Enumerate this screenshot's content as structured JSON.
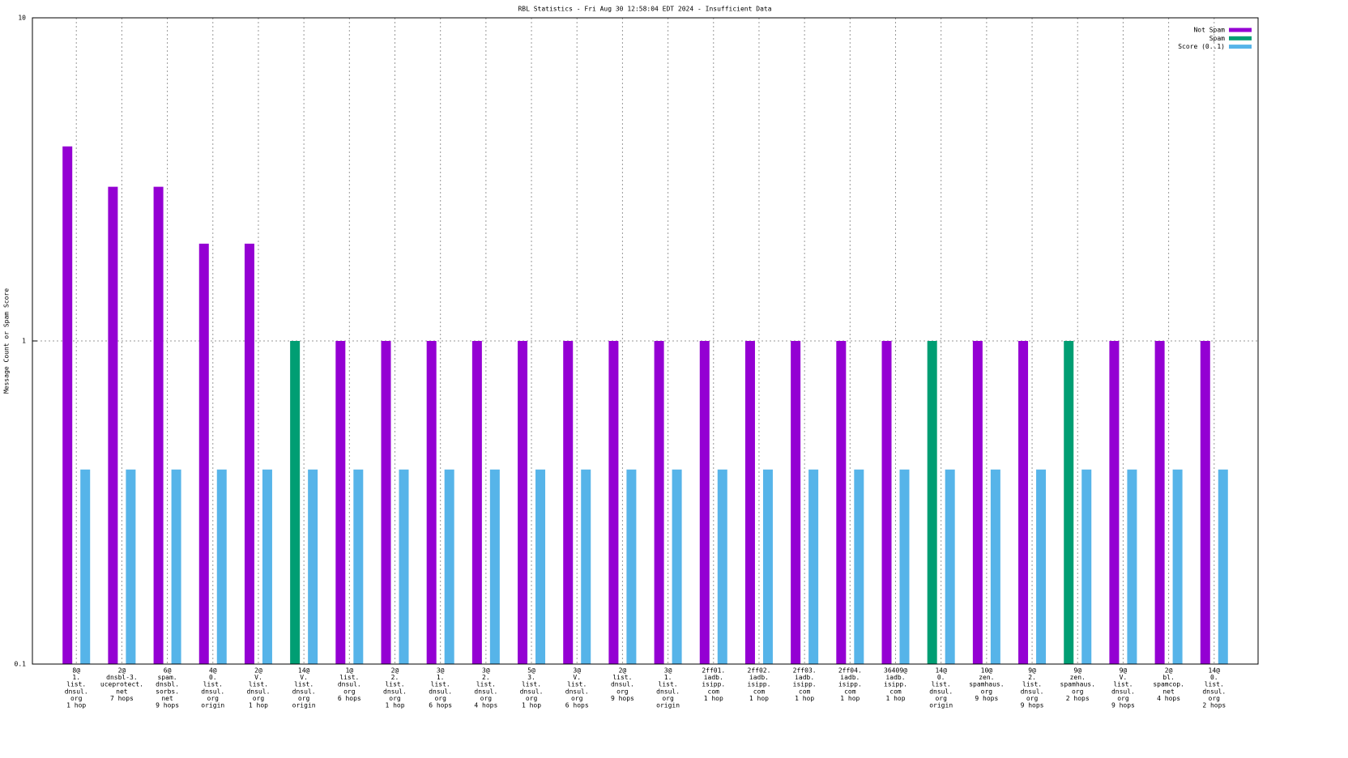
{
  "chart_data": {
    "type": "bar",
    "title": "RBL Statistics - Fri Aug 30 12:58:04 EDT 2024 - Insufficient Data",
    "y_label": "Message Count or Spam Score",
    "categories": [
      [
        "8@",
        "1.",
        "list.",
        "dnsul.",
        "org",
        "1 hop"
      ],
      [
        "2@",
        "dnsbl-3.",
        "uceprotect.",
        "net",
        "7 hops"
      ],
      [
        "6@",
        "spam.",
        "dnsbl.",
        "sorbs.",
        "net",
        "9 hops"
      ],
      [
        "4@",
        "0.",
        "list.",
        "dnsul.",
        "org",
        "origin"
      ],
      [
        "2@",
        "V.",
        "list.",
        "dnsul.",
        "org",
        "1 hop"
      ],
      [
        "14@",
        "V.",
        "list.",
        "dnsul.",
        "org",
        "origin"
      ],
      [
        "1@",
        "list.",
        "dnsul.",
        "org",
        "6 hops"
      ],
      [
        "2@",
        "2.",
        "list.",
        "dnsul.",
        "org",
        "1 hop"
      ],
      [
        "3@",
        "1.",
        "list.",
        "dnsul.",
        "org",
        "6 hops"
      ],
      [
        "3@",
        "2.",
        "list.",
        "dnsul.",
        "org",
        "4 hops"
      ],
      [
        "5@",
        "3.",
        "list.",
        "dnsul.",
        "org",
        "1 hop"
      ],
      [
        "3@",
        "V.",
        "list.",
        "dnsul.",
        "org",
        "6 hops"
      ],
      [
        "2@",
        "list.",
        "dnsul.",
        "org",
        "9 hops"
      ],
      [
        "3@",
        "1.",
        "list.",
        "dnsul.",
        "org",
        "origin"
      ],
      [
        "2ff01.",
        "iadb.",
        "isipp.",
        "com",
        "1 hop"
      ],
      [
        "2ff02.",
        "iadb.",
        "isipp.",
        "com",
        "1 hop"
      ],
      [
        "2ff03.",
        "iadb.",
        "isipp.",
        "com",
        "1 hop"
      ],
      [
        "2ff04.",
        "iadb.",
        "isipp.",
        "com",
        "1 hop"
      ],
      [
        "36409@",
        "iadb.",
        "isipp.",
        "com",
        "1 hop"
      ],
      [
        "14@",
        "0.",
        "list.",
        "dnsul.",
        "org",
        "origin"
      ],
      [
        "10@",
        "zen.",
        "spamhaus.",
        "org",
        "9 hops"
      ],
      [
        "9@",
        "2.",
        "list.",
        "dnsul.",
        "org",
        "9 hops"
      ],
      [
        "9@",
        "zen.",
        "spamhaus.",
        "org",
        "2 hops"
      ],
      [
        "9@",
        "V.",
        "list.",
        "dnsul.",
        "org",
        "9 hops"
      ],
      [
        "2@",
        "bl.",
        "spamcop.",
        "net",
        "4 hops"
      ],
      [
        "14@",
        "0.",
        "list.",
        "dnsul.",
        "org",
        "2 hops"
      ]
    ],
    "series": [
      {
        "name": "Not Spam",
        "color": "#9400d3",
        "values": [
          4,
          3,
          3,
          2,
          2,
          null,
          1,
          1,
          1,
          1,
          1,
          1,
          1,
          1,
          1,
          1,
          1,
          1,
          1,
          null,
          1,
          1,
          null,
          1,
          1,
          1
        ]
      },
      {
        "name": "Spam",
        "color": "#009e73",
        "values": [
          null,
          null,
          null,
          null,
          null,
          1,
          null,
          null,
          null,
          null,
          null,
          null,
          null,
          null,
          null,
          null,
          null,
          null,
          null,
          1,
          null,
          null,
          1,
          null,
          null,
          null
        ]
      },
      {
        "name": "Score (0..1)",
        "color": "#56b4e9",
        "values": [
          0.4,
          0.4,
          0.4,
          0.4,
          0.4,
          0.4,
          0.4,
          0.4,
          0.4,
          0.4,
          0.4,
          0.4,
          0.4,
          0.4,
          0.4,
          0.4,
          0.4,
          0.4,
          0.4,
          0.4,
          0.4,
          0.4,
          0.4,
          0.4,
          0.4,
          0.4
        ]
      }
    ],
    "ylim": [
      0.1,
      10
    ],
    "yticks": [
      0.1,
      1,
      10
    ],
    "log_y": true,
    "grid": true,
    "legend": "top-right"
  }
}
